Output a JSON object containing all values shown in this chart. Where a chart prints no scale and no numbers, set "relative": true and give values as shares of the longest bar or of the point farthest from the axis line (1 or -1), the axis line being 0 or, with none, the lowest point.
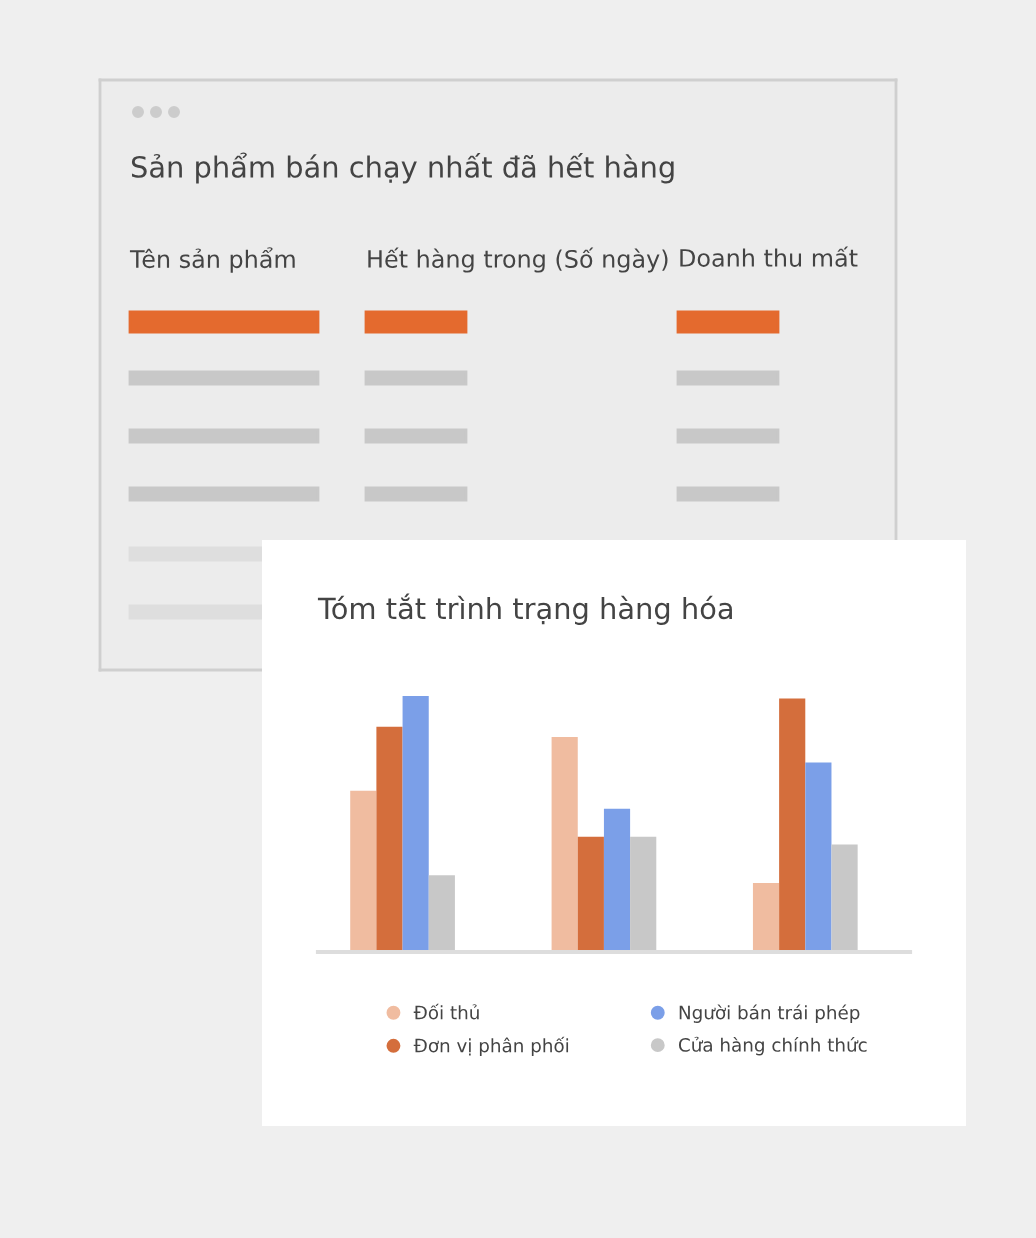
{
  "chart_data": [
    {
      "type": "other",
      "title": "Sản phẩm bán chạy nhất đã hết hàng",
      "categories": [
        "Tên sản phẩm",
        "Hết hàng trong (Số ngày)",
        "Doanh thu mất"
      ]
    },
    {
      "type": "bar",
      "title": "Tóm tắt trình trạng hàng hóa",
      "categories": [
        null,
        null,
        null
      ],
      "relative": true,
      "legend": "bottom",
      "series": [
        {
          "name": "Đối thủ",
          "color": "#f0bca0",
          "values": [
            0.63,
            0.84,
            0.27
          ]
        },
        {
          "name": "Đơn vị phân phối",
          "color": "#d46e3c",
          "values": [
            0.88,
            0.45,
            0.99
          ]
        },
        {
          "name": "Người bán trái phép",
          "color": "#7b9fe8",
          "values": [
            1,
            0.56,
            0.74
          ]
        },
        {
          "name": "Cửa hàng chính thức",
          "color": "#c8c8c8",
          "values": [
            0.3,
            0.45,
            0.42
          ]
        }
      ]
    }
  ]
}
